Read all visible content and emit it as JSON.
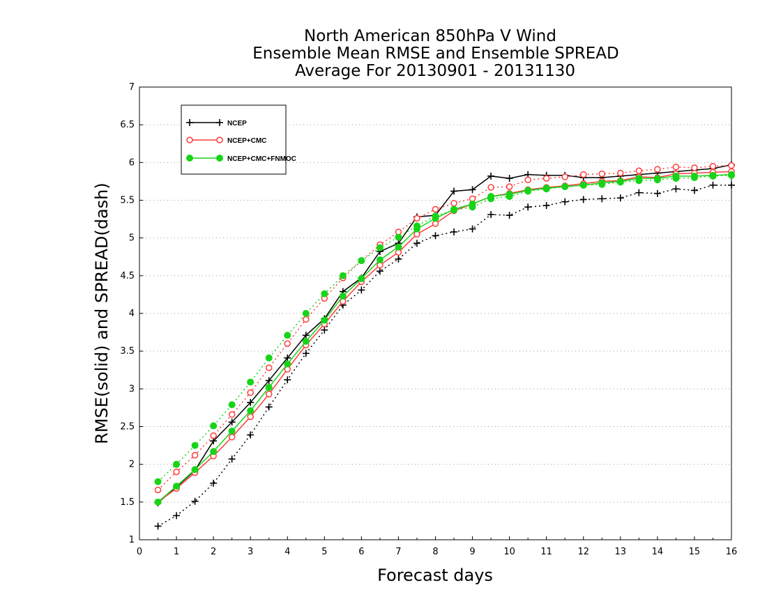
{
  "chart_data": {
    "type": "line",
    "title": [
      "North American 850hPa V Wind",
      "Ensemble Mean RMSE and Ensemble SPREAD",
      "Average For 20130901 - 20131130"
    ],
    "xlabel": "Forecast days",
    "ylabel": "RMSE(solid) and SPREAD(dash)",
    "xlim": [
      0,
      16
    ],
    "ylim": [
      1,
      7
    ],
    "xticks": [
      0,
      1,
      2,
      3,
      4,
      5,
      6,
      7,
      8,
      9,
      10,
      11,
      12,
      13,
      14,
      15,
      16
    ],
    "yticks": [
      1,
      1.5,
      2,
      2.5,
      3,
      3.5,
      4,
      4.5,
      5,
      5.5,
      6,
      6.5,
      7
    ],
    "ytick_labels": [
      "1",
      "1.5",
      "2",
      "2.5",
      "3",
      "3.5",
      "4",
      "4.5",
      "5",
      "5.5",
      "6",
      "6.5",
      "7"
    ],
    "grid": "horizontal dotted",
    "legend_position": "top-left",
    "x": [
      0.5,
      1,
      1.5,
      2,
      2.5,
      3,
      3.5,
      4,
      4.5,
      5,
      5.5,
      6,
      6.5,
      7,
      7.5,
      8,
      8.5,
      9,
      9.5,
      10,
      10.5,
      11,
      11.5,
      12,
      12.5,
      13,
      13.5,
      14,
      14.5,
      15,
      15.5,
      16
    ],
    "series": [
      {
        "name": "NCEP",
        "color": "#000000",
        "marker": "plus",
        "rmse": [
          1.49,
          1.7,
          1.92,
          2.31,
          2.56,
          2.82,
          3.11,
          3.41,
          3.71,
          3.93,
          4.29,
          4.47,
          4.82,
          4.93,
          5.28,
          5.3,
          5.62,
          5.64,
          5.82,
          5.79,
          5.84,
          5.83,
          5.83,
          5.8,
          5.8,
          5.82,
          5.84,
          5.86,
          5.88,
          5.9,
          5.92,
          5.97
        ],
        "spread": [
          1.18,
          1.32,
          1.51,
          1.75,
          2.07,
          2.39,
          2.76,
          3.12,
          3.47,
          3.78,
          4.11,
          4.31,
          4.56,
          4.72,
          4.93,
          5.03,
          5.08,
          5.12,
          5.31,
          5.3,
          5.41,
          5.43,
          5.48,
          5.51,
          5.52,
          5.53,
          5.6,
          5.59,
          5.65,
          5.63,
          5.7,
          5.7
        ]
      },
      {
        "name": "NCEP+CMC",
        "color": "#ff3b3b",
        "marker": "open-circle",
        "rmse": [
          1.5,
          1.68,
          1.89,
          2.11,
          2.36,
          2.63,
          2.93,
          3.26,
          3.58,
          3.86,
          4.16,
          4.42,
          4.64,
          4.81,
          5.05,
          5.19,
          5.36,
          5.45,
          5.55,
          5.59,
          5.64,
          5.67,
          5.69,
          5.72,
          5.75,
          5.76,
          5.81,
          5.8,
          5.85,
          5.86,
          5.87,
          5.88
        ],
        "spread": [
          1.66,
          1.9,
          2.12,
          2.38,
          2.66,
          2.95,
          3.28,
          3.6,
          3.92,
          4.2,
          4.47,
          4.7,
          4.91,
          5.08,
          5.26,
          5.38,
          5.46,
          5.52,
          5.67,
          5.68,
          5.77,
          5.79,
          5.81,
          5.84,
          5.85,
          5.86,
          5.89,
          5.91,
          5.94,
          5.93,
          5.95,
          5.96
        ]
      },
      {
        "name": "NCEP+CMC+FNMOC",
        "color": "#18d418",
        "marker": "filled-circle",
        "rmse": [
          1.5,
          1.71,
          1.93,
          2.17,
          2.44,
          2.71,
          3.02,
          3.33,
          3.63,
          3.91,
          4.23,
          4.46,
          4.71,
          4.88,
          5.12,
          5.26,
          5.38,
          5.45,
          5.55,
          5.58,
          5.63,
          5.66,
          5.68,
          5.7,
          5.73,
          5.75,
          5.79,
          5.79,
          5.82,
          5.82,
          5.83,
          5.84
        ],
        "spread": [
          1.77,
          2.0,
          2.25,
          2.51,
          2.79,
          3.09,
          3.41,
          3.71,
          4.0,
          4.26,
          4.5,
          4.7,
          4.87,
          5.01,
          5.16,
          5.29,
          5.37,
          5.41,
          5.52,
          5.55,
          5.62,
          5.65,
          5.68,
          5.7,
          5.71,
          5.74,
          5.76,
          5.77,
          5.79,
          5.8,
          5.82,
          5.83
        ]
      }
    ]
  }
}
